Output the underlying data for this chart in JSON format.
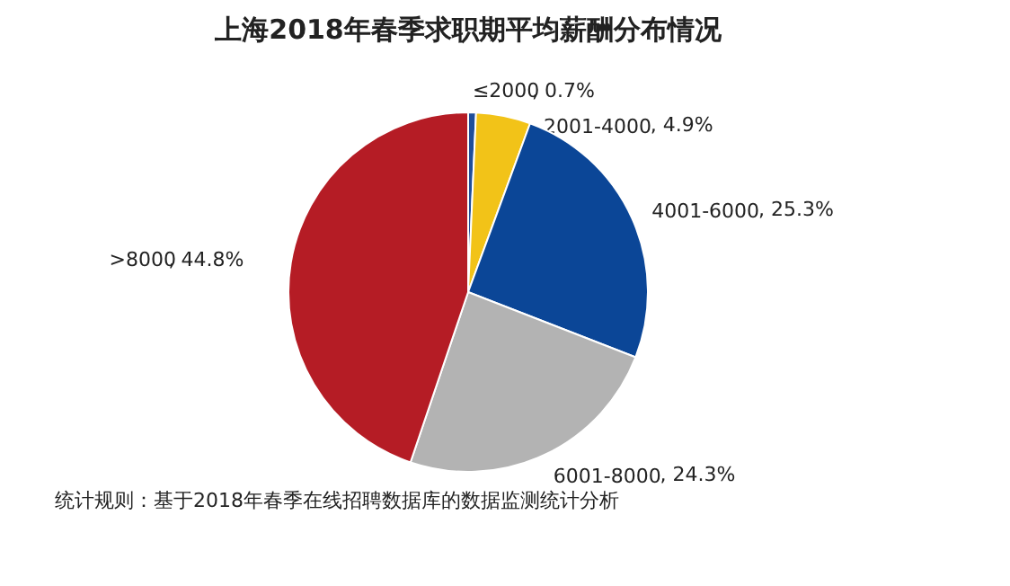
{
  "chart_data": {
    "type": "pie",
    "title": "上海2018年春季求职期平均薪酬分布情况",
    "categories": [
      "≤2000",
      "2001-4000",
      "4001-6000",
      "6001-8000",
      ">8000"
    ],
    "values": [
      0.7,
      4.9,
      25.3,
      24.3,
      44.8
    ],
    "value_labels": [
      ", 0.7%",
      ", 4.9%",
      ", 25.3%",
      ", 24.3%",
      ", 44.8%"
    ],
    "colors": [
      "#1f4e9a",
      "#f2c318",
      "#0b4697",
      "#b3b3b3",
      "#b51c25"
    ],
    "annotations": [
      "统计规则：基于2018年春季在线招聘数据库的数据监测统计分析"
    ]
  }
}
